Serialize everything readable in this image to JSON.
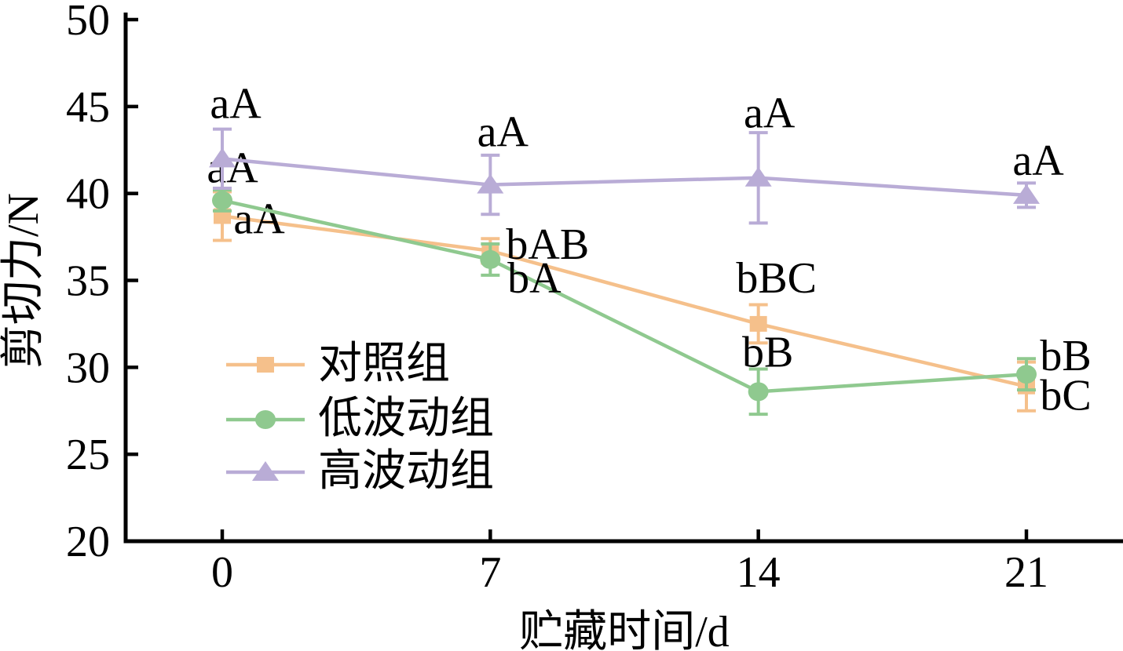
{
  "chart_data": {
    "type": "line",
    "title": "",
    "xlabel": "贮藏时间/d",
    "ylabel": "剪切力/N",
    "x": [
      0,
      7,
      14,
      21
    ],
    "x_tick_labels": [
      "0",
      "7",
      "14",
      "21"
    ],
    "y_ticks": [
      20,
      25,
      30,
      35,
      40,
      45,
      50
    ],
    "y_tick_labels": [
      "20",
      "25",
      "30",
      "35",
      "40",
      "45",
      "50"
    ],
    "ylim": [
      20,
      50
    ],
    "grid": false,
    "legend_position": "inside-left-middle",
    "axis_color": "#000000",
    "series": [
      {
        "name": "对照组",
        "marker": "square",
        "color": "#F5C08B",
        "x": [
          0,
          7,
          14,
          21
        ],
        "values": [
          38.7,
          36.7,
          32.5,
          28.9
        ],
        "errors": [
          1.4,
          0.7,
          1.1,
          1.4
        ],
        "annotations": [
          {
            "text": "aA",
            "dx": 47,
            "dy": 22
          },
          {
            "text": "bAB",
            "dx": 73,
            "dy": 10
          },
          {
            "text": "bBC",
            "dx": 23,
            "dy": -40
          },
          {
            "text": "bC",
            "dx": 50,
            "dy": 30
          }
        ]
      },
      {
        "name": "低波动组",
        "marker": "circle",
        "color": "#8FC98F",
        "x": [
          0,
          7,
          14,
          21
        ],
        "values": [
          39.6,
          36.2,
          28.6,
          29.6
        ],
        "errors": [
          0.6,
          0.9,
          1.3,
          0.9
        ],
        "annotations": [
          {
            "text": "aA",
            "dx": 13,
            "dy": -23
          },
          {
            "text": "bA",
            "dx": 56,
            "dy": 42
          },
          {
            "text": "bB",
            "dx": 12,
            "dy": -32
          },
          {
            "text": "bB",
            "dx": 50,
            "dy": -5
          }
        ]
      },
      {
        "name": "高波动组",
        "marker": "triangle",
        "color": "#B9ACD6",
        "x": [
          0,
          7,
          14,
          21
        ],
        "values": [
          42.0,
          40.5,
          40.9,
          39.9
        ],
        "errors": [
          1.7,
          1.7,
          2.6,
          0.7
        ],
        "annotations": [
          {
            "text": "aA",
            "dx": 17,
            "dy": -52
          },
          {
            "text": "aA",
            "dx": 16,
            "dy": -49
          },
          {
            "text": "aA",
            "dx": 14,
            "dy": -64
          },
          {
            "text": "aA",
            "dx": 15,
            "dy": -26
          }
        ]
      }
    ]
  }
}
